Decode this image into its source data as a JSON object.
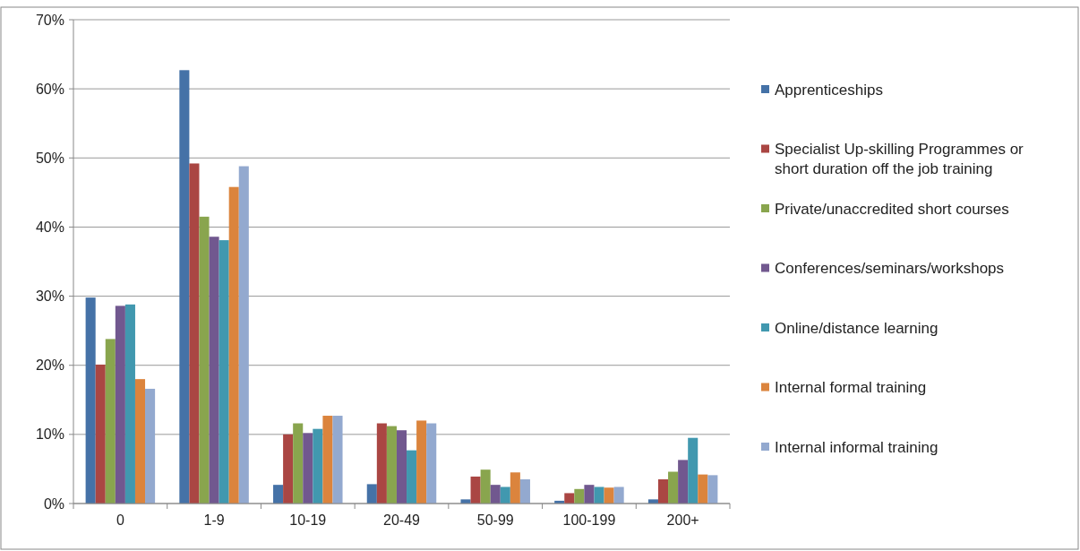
{
  "chart_data": {
    "type": "bar",
    "categories": [
      "0",
      "1-9",
      "10-19",
      "20-49",
      "50-99",
      "100-199",
      "200+"
    ],
    "series": [
      {
        "name": "Apprenticeships",
        "color": "#4572a7",
        "values": [
          29.8,
          62.7,
          2.7,
          2.8,
          0.6,
          0.4,
          0.6
        ]
      },
      {
        "name": "Specialist Up-skilling Programmes or short duration off the job training",
        "color": "#aa4643",
        "values": [
          20.1,
          49.2,
          10,
          11.6,
          3.9,
          1.5,
          3.5
        ]
      },
      {
        "name": "Private/unaccredited short courses",
        "color": "#89a54e",
        "values": [
          23.8,
          41.5,
          11.6,
          11.2,
          4.9,
          2.1,
          4.6
        ]
      },
      {
        "name": "Conferences/seminars/workshops",
        "color": "#71588f",
        "values": [
          28.6,
          38.6,
          10.2,
          10.6,
          2.7,
          2.7,
          6.3
        ]
      },
      {
        "name": "Online/distance learning",
        "color": "#4198af",
        "values": [
          28.8,
          38.1,
          10.8,
          7.7,
          2.4,
          2.4,
          9.5
        ]
      },
      {
        "name": "Internal formal training",
        "color": "#db843d",
        "values": [
          18,
          45.8,
          12.7,
          12,
          4.5,
          2.3,
          4.2
        ]
      },
      {
        "name": "Internal informal training",
        "color": "#93a9cf",
        "values": [
          16.6,
          48.8,
          12.7,
          11.6,
          3.5,
          2.4,
          4.1
        ]
      }
    ],
    "ylim": [
      0,
      70
    ],
    "yticks": [
      {
        "value": 0,
        "label": "0%"
      },
      {
        "value": 10,
        "label": "10%"
      },
      {
        "value": 20,
        "label": "20%"
      },
      {
        "value": 30,
        "label": "30%"
      },
      {
        "value": 40,
        "label": "40%"
      },
      {
        "value": 50,
        "label": "50%"
      },
      {
        "value": 60,
        "label": "60%"
      },
      {
        "value": 70,
        "label": "70%"
      }
    ],
    "grid": "y",
    "legend": "right"
  }
}
